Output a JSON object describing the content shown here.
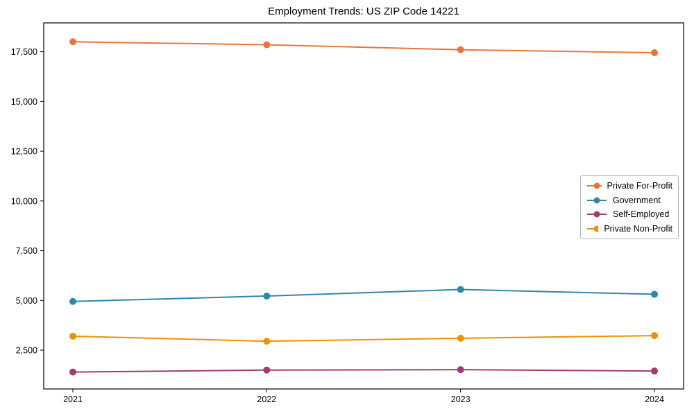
{
  "chart_data": {
    "type": "line",
    "title": "Employment Trends: US ZIP Code 14221",
    "categories": [
      "2021",
      "2022",
      "2023",
      "2024"
    ],
    "series": [
      {
        "name": "Private For-Profit",
        "color": "#E8763C",
        "values": [
          18000,
          17850,
          17600,
          17450
        ]
      },
      {
        "name": "Government",
        "color": "#2E86AB",
        "values": [
          4950,
          5220,
          5550,
          5310
        ]
      },
      {
        "name": "Self-Employed",
        "color": "#A23B72",
        "values": [
          1400,
          1500,
          1520,
          1450
        ]
      },
      {
        "name": "Private Non-Profit",
        "color": "#F18F01",
        "values": [
          3200,
          2950,
          3100,
          3230
        ]
      }
    ],
    "xlabel": "",
    "ylabel": "",
    "ylim": [
      550,
      18950
    ],
    "yticks": [
      2500,
      5000,
      7500,
      10000,
      12500,
      15000,
      17500
    ],
    "ytick_labels": [
      "2,500",
      "5,000",
      "7,500",
      "10,000",
      "12,500",
      "15,000",
      "17,500"
    ],
    "xtick_labels": [
      "2021",
      "2022",
      "2023",
      "2024"
    ],
    "grid": false,
    "legend_position": "center right",
    "marker": "circle",
    "axis_color": "#000000",
    "tick_label_color": "#000000",
    "legend_border_color": "#b3b3b3",
    "background_color": "#ffffff"
  }
}
